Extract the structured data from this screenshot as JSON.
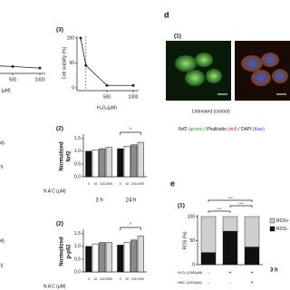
{
  "chart_data": [
    {
      "type": "line",
      "x_label": "C (μM)",
      "x": [
        0,
        500,
        1000
      ],
      "values": [
        10,
        8,
        5
      ],
      "color": "#222",
      "xlim": [
        0,
        1000
      ],
      "ylim": [
        0,
        100
      ],
      "xticks": [
        500,
        1000
      ]
    },
    {
      "type": "line",
      "panel": "(3)",
      "x_label": "H₂O₂(μM)",
      "y_label": "Cell viability (%)",
      "x": [
        0,
        100,
        500,
        1000
      ],
      "values": [
        100,
        45,
        5,
        5
      ],
      "color": "#222",
      "xlim": [
        0,
        1000
      ],
      "ylim": [
        0,
        100
      ],
      "xticks": [
        500,
        1000
      ],
      "yticks": [
        0,
        50,
        100
      ]
    },
    {
      "type": "bar",
      "panel": "(2)",
      "y_label": [
        "Normalized",
        "Nrf2"
      ],
      "x_label": "N A C (μM)",
      "categories": [
        "3 h",
        "24 h"
      ],
      "dose_labels": [
        "0",
        "10",
        "100",
        "1000"
      ],
      "series": [
        {
          "color": "#111",
          "values": [
            1.0,
            1.1
          ]
        },
        {
          "color": "#fff",
          "values": [
            1.05,
            1.2
          ]
        },
        {
          "color": "#8a8a8a",
          "values": [
            1.1,
            1.25
          ]
        },
        {
          "color": "#d9d9d9",
          "values": [
            1.15,
            1.35
          ]
        }
      ],
      "ylim": [
        0,
        1.6
      ],
      "yticks": [
        {
          "value": 0,
          "label": "0.0"
        },
        0.5,
        {
          "value": 1,
          "label": "1.0"
        },
        1.5
      ],
      "annotation": "*"
    },
    {
      "type": "bar",
      "panel": "(2)",
      "y_label": [
        "Normalized",
        "p-p62"
      ],
      "x_label": "N A C (μM)",
      "categories": [
        "3 h",
        "24 h"
      ],
      "dose_labels": [
        "0",
        "10",
        "100",
        "1000"
      ],
      "series": [
        {
          "color": "#111",
          "values": [
            1.0,
            1.05
          ]
        },
        {
          "color": "#fff",
          "values": [
            1.1,
            1.15
          ]
        },
        {
          "color": "#8a8a8a",
          "values": [
            1.15,
            1.25
          ]
        },
        {
          "color": "#d9d9d9",
          "values": [
            1.15,
            1.4
          ]
        }
      ],
      "ylim": [
        0,
        1.6
      ],
      "yticks": [
        {
          "value": 0,
          "label": "0.0"
        },
        0.5,
        {
          "value": 1,
          "label": "1.0"
        },
        1.5
      ],
      "annotation": "*"
    },
    {
      "type": "stacked_bar",
      "panel_letter": "e",
      "panel": "(1)",
      "y_label": "ROS (%)",
      "group_label": "3 h",
      "series": [
        {
          "name": "ROS-",
          "color": "#111",
          "values": [
            25.2,
            69.6,
            36.7
          ]
        },
        {
          "name": "ROS+",
          "color": "#cfcfcf",
          "values": [
            74.8,
            30.4,
            63.3
          ]
        }
      ],
      "conditions": [
        {
          "label": "H₂O₂ (1000μM)",
          "signs": [
            "-",
            "+",
            "+"
          ]
        },
        {
          "label": "NAC (1000μM)",
          "signs": [
            "-",
            "-",
            "+"
          ]
        }
      ],
      "ylim": [
        0,
        100
      ],
      "yticks": [
        0,
        50,
        100
      ],
      "annotation": "****"
    }
  ],
  "image_panel": {
    "letter": "d",
    "panel": "(1)",
    "caption": "Untreated (control)",
    "stain_legend": [
      "Nrf2 ",
      "(green)",
      " / Phalloidin ",
      "(red)",
      " / DAPI ",
      "(blue)"
    ]
  },
  "edge_texts": [
    "M)",
    "h)",
    "M)",
    "h)"
  ]
}
